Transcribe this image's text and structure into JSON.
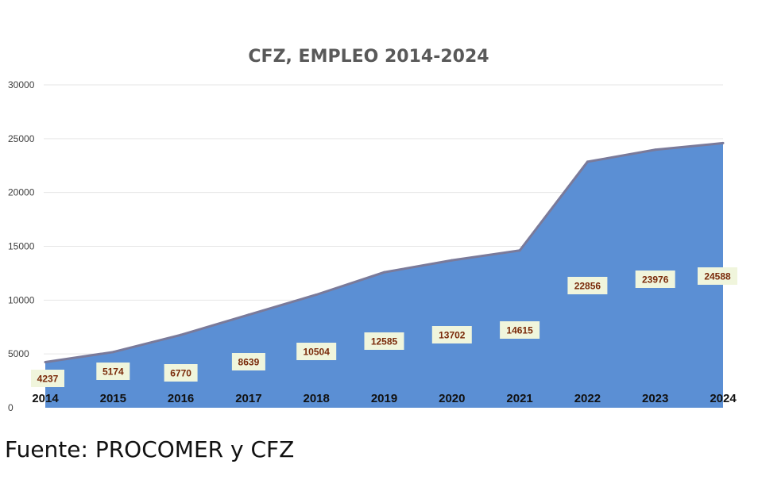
{
  "chart_data": {
    "type": "area",
    "title": "CFZ,  EMPLEO 2014-2024",
    "xlabel": "",
    "ylabel": "",
    "categories": [
      "2014",
      "2015",
      "2016",
      "2017",
      "2018",
      "2019",
      "2020",
      "2021",
      "2022",
      "2023",
      "2024"
    ],
    "series": [
      {
        "name": "Empleo",
        "values": [
          4237,
          5174,
          6770,
          8639,
          10504,
          12585,
          13702,
          14615,
          22856,
          23976,
          24588
        ]
      }
    ],
    "ylim": [
      0,
      30000
    ],
    "yticks": [
      "0",
      "5000",
      "10000",
      "15000",
      "20000",
      "25000",
      "30000"
    ],
    "grid": true,
    "legend": "none",
    "colors": {
      "area_fill": "#5b8fd4",
      "area_line": "#7a7a9a",
      "label_bg": "#f0f5dc",
      "label_text": "#7a2a0a"
    }
  },
  "footer": {
    "source": "Fuente: PROCOMER y CFZ"
  }
}
